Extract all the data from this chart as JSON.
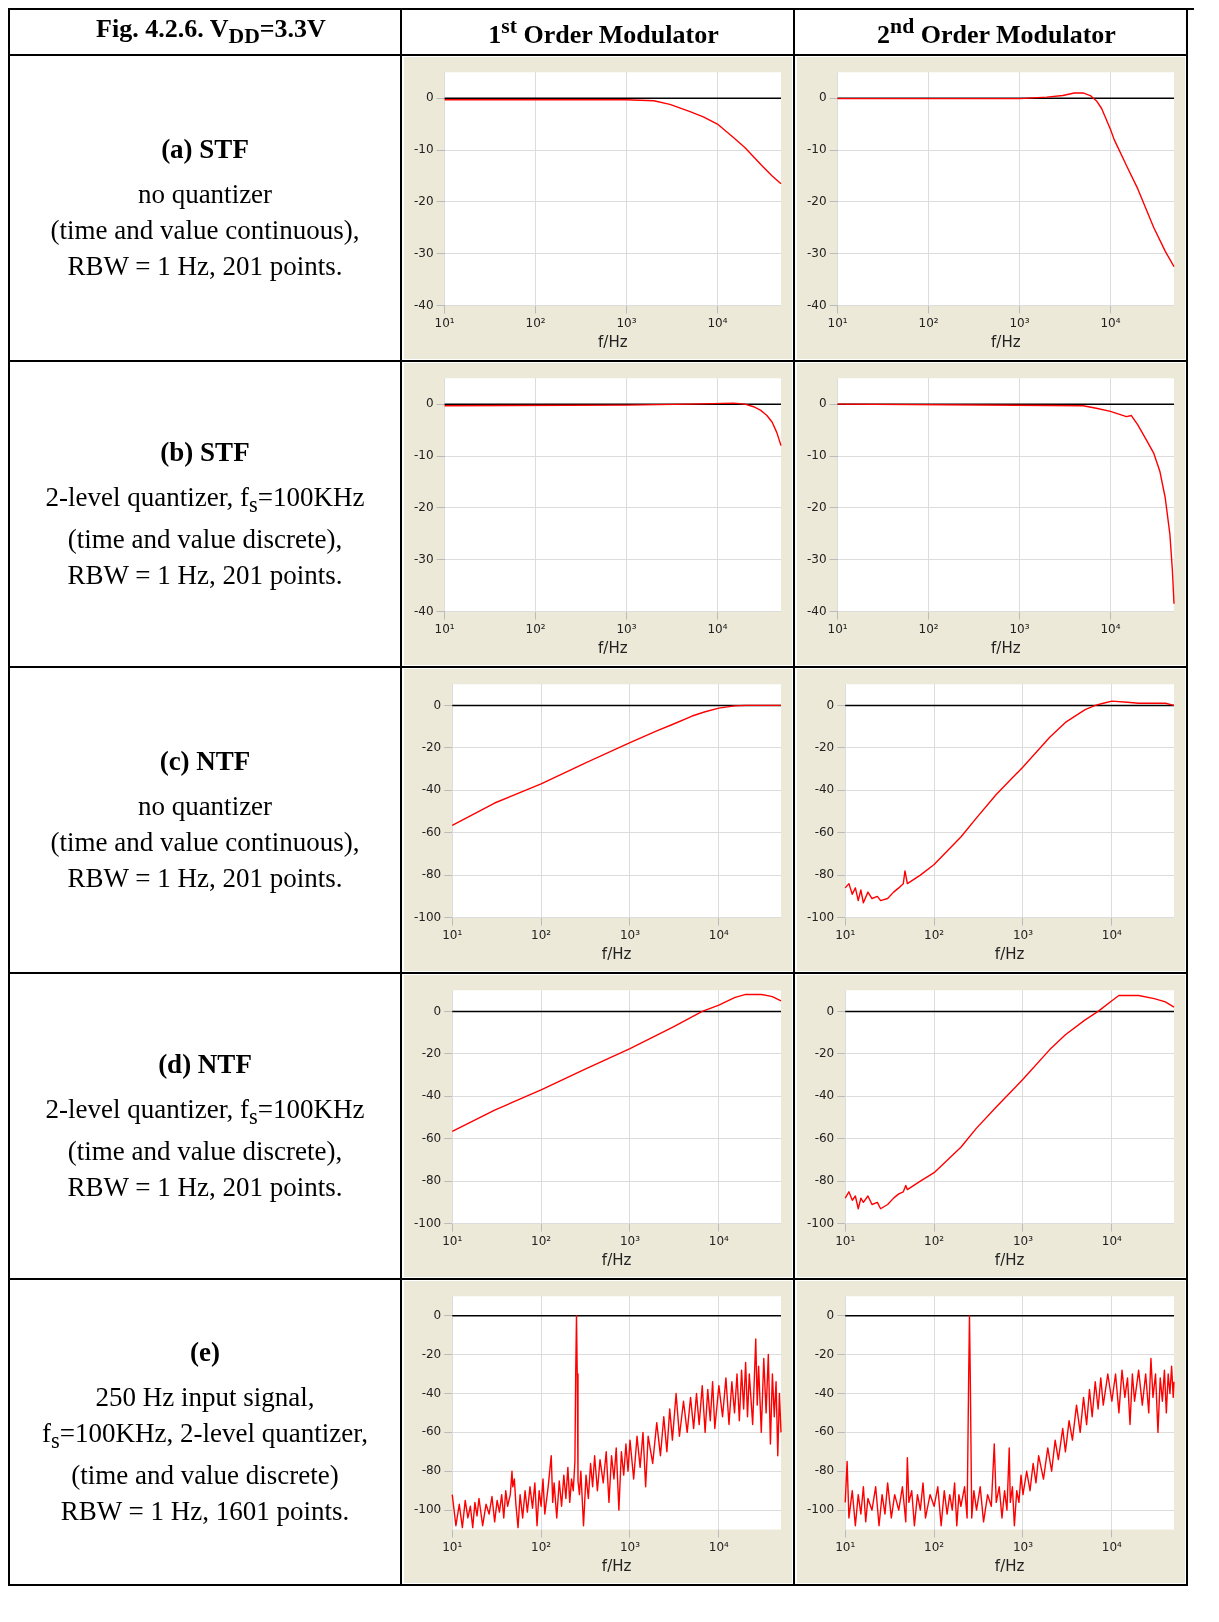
{
  "chart_data": [
    {
      "type": "other",
      "title": "Fig. 4.2.6.   V$_{DD}$=3.3V"
    },
    {
      "type": "other",
      "title": "1$^{st}$ Order Modulator"
    },
    {
      "type": "other",
      "title": "2$^{nd}$ Order Modulator"
    },
    {
      "type": "other",
      "title": "(a) STF",
      "annotations": [
        "no quantizer",
        "(time and value continuous),",
        "RBW = 1 Hz, 201 points."
      ]
    },
    {
      "type": "line",
      "xlabel": "f/Hz",
      "log": "x",
      "grid": true,
      "color": "#ff0000",
      "xlim": [
        10,
        50000
      ],
      "xticks": [
        {
          "value": 10,
          "label": "10¹"
        },
        {
          "value": 100,
          "label": "10²"
        },
        {
          "value": 1000,
          "label": "10³"
        },
        {
          "value": 10000,
          "label": "10⁴"
        }
      ],
      "ylim": [
        -40,
        5
      ],
      "yticks": [
        0,
        -10,
        -20,
        -30,
        -40
      ],
      "ref_lines": [
        {
          "axis": "y",
          "value": 0,
          "color": "#000000"
        }
      ],
      "x": [
        10,
        100,
        1000,
        2000,
        3000,
        5000,
        7000,
        10000,
        15000,
        20000,
        30000,
        40000,
        50000
      ],
      "values": [
        -0.3,
        -0.3,
        -0.3,
        -0.5,
        -1.2,
        -2.6,
        -3.6,
        -5,
        -7.6,
        -9.5,
        -12.8,
        -15,
        -16.5
      ]
    },
    {
      "type": "line",
      "xlabel": "f/Hz",
      "log": "x",
      "grid": true,
      "color": "#ff0000",
      "xlim": [
        10,
        50000
      ],
      "xticks": [
        {
          "value": 10,
          "label": "10¹"
        },
        {
          "value": 100,
          "label": "10²"
        },
        {
          "value": 1000,
          "label": "10³"
        },
        {
          "value": 10000,
          "label": "10⁴"
        }
      ],
      "ylim": [
        -40,
        5
      ],
      "yticks": [
        0,
        -10,
        -20,
        -30,
        -40
      ],
      "ref_lines": [
        {
          "axis": "y",
          "value": 0,
          "color": "#000000"
        }
      ],
      "x": [
        10,
        1000,
        2000,
        3000,
        4000,
        5000,
        6000,
        7000,
        8000,
        10000,
        11000,
        15000,
        20000,
        30000,
        40000,
        50000
      ],
      "values": [
        -0.1,
        -0.1,
        0.2,
        0.5,
        1,
        1,
        0.5,
        -0.5,
        -2,
        -6,
        -8,
        -13,
        -17.5,
        -25,
        -29.5,
        -32.5
      ]
    },
    {
      "type": "other",
      "title": "(b) STF",
      "annotations": [
        "2-level quantizer, f$_{s}$=100KHz",
        "(time and value discrete),",
        "RBW = 1 Hz, 201 points."
      ]
    },
    {
      "type": "line",
      "xlabel": "f/Hz",
      "log": "x",
      "grid": true,
      "color": "#ff0000",
      "xlim": [
        10,
        50000
      ],
      "xticks": [
        {
          "value": 10,
          "label": "10¹"
        },
        {
          "value": 100,
          "label": "10²"
        },
        {
          "value": 1000,
          "label": "10³"
        },
        {
          "value": 10000,
          "label": "10⁴"
        }
      ],
      "ylim": [
        -40,
        5
      ],
      "yticks": [
        0,
        -10,
        -20,
        -30,
        -40
      ],
      "ref_lines": [
        {
          "axis": "y",
          "value": 0,
          "color": "#000000"
        }
      ],
      "x": [
        10,
        1000,
        5000,
        15000,
        20000,
        25000,
        30000,
        35000,
        40000,
        45000,
        50000
      ],
      "values": [
        -0.3,
        -0.2,
        0,
        0.2,
        0,
        -0.5,
        -1.2,
        -2.2,
        -3.5,
        -5.5,
        -8
      ]
    },
    {
      "type": "line",
      "xlabel": "f/Hz",
      "log": "x",
      "grid": true,
      "color": "#ff0000",
      "xlim": [
        10,
        50000
      ],
      "xticks": [
        {
          "value": 10,
          "label": "10¹"
        },
        {
          "value": 100,
          "label": "10²"
        },
        {
          "value": 1000,
          "label": "10³"
        },
        {
          "value": 10000,
          "label": "10⁴"
        }
      ],
      "ylim": [
        -40,
        5
      ],
      "yticks": [
        0,
        -10,
        -20,
        -30,
        -40
      ],
      "ref_lines": [
        {
          "axis": "y",
          "value": 0,
          "color": "#000000"
        }
      ],
      "x": [
        10,
        5000,
        7000,
        10000,
        15000,
        17000,
        20000,
        25000,
        30000,
        35000,
        40000,
        45000,
        48000,
        50000
      ],
      "values": [
        0,
        -0.3,
        -0.8,
        -1.4,
        -2.4,
        -2.2,
        -4,
        -7,
        -9.5,
        -13,
        -18,
        -25,
        -32,
        -38.5
      ]
    },
    {
      "type": "other",
      "title": "(c) NTF",
      "annotations": [
        "no quantizer",
        "(time and value continuous),",
        "RBW = 1 Hz, 201 points."
      ]
    },
    {
      "type": "line",
      "xlabel": "f/Hz",
      "log": "x",
      "grid": true,
      "color": "#ff0000",
      "xlim": [
        10,
        50000
      ],
      "xticks": [
        {
          "value": 10,
          "label": "10¹"
        },
        {
          "value": 100,
          "label": "10²"
        },
        {
          "value": 1000,
          "label": "10³"
        },
        {
          "value": 10000,
          "label": "10⁴"
        }
      ],
      "ylim": [
        -100,
        10
      ],
      "yticks": [
        0,
        -20,
        -40,
        -60,
        -80,
        -100
      ],
      "ref_lines": [
        {
          "axis": "y",
          "value": 0,
          "color": "#000000"
        }
      ],
      "x": [
        10,
        30,
        100,
        300,
        1000,
        2000,
        3000,
        5000,
        7000,
        10000,
        15000,
        20000,
        50000
      ],
      "values": [
        -56.5,
        -46,
        -37,
        -27.5,
        -17.5,
        -12,
        -9,
        -5,
        -3,
        -1.3,
        -0.2,
        0,
        0
      ]
    },
    {
      "type": "line",
      "xlabel": "f/Hz",
      "log": "x",
      "grid": true,
      "color": "#ff0000",
      "xlim": [
        10,
        50000
      ],
      "xticks": [
        {
          "value": 10,
          "label": "10¹"
        },
        {
          "value": 100,
          "label": "10²"
        },
        {
          "value": 1000,
          "label": "10³"
        },
        {
          "value": 10000,
          "label": "10⁴"
        }
      ],
      "ylim": [
        -100,
        10
      ],
      "yticks": [
        0,
        -20,
        -40,
        -60,
        -80,
        -100
      ],
      "ref_lines": [
        {
          "axis": "y",
          "value": 0,
          "color": "#000000"
        }
      ],
      "x": [
        10,
        11,
        12,
        13,
        14,
        15,
        16,
        18,
        20,
        23,
        25,
        30,
        35,
        40,
        45,
        47,
        50,
        70,
        100,
        200,
        300,
        500,
        1000,
        2000,
        3000,
        5000,
        6500,
        8000,
        10000,
        15000,
        20000,
        40000,
        50000
      ],
      "values": [
        -86,
        -84,
        -89,
        -86,
        -92,
        -87,
        -93,
        -88,
        -91,
        -90,
        -92,
        -91,
        -88,
        -86,
        -84,
        -78,
        -84,
        -80,
        -75,
        -62,
        -53,
        -42,
        -29,
        -15,
        -8,
        -2,
        0,
        1,
        2,
        1.5,
        1,
        1,
        0
      ]
    },
    {
      "type": "other",
      "title": "(d) NTF",
      "annotations": [
        "2-level quantizer, f$_{s}$=100KHz",
        "(time and value discrete),",
        "RBW = 1 Hz, 201 points."
      ]
    },
    {
      "type": "line",
      "xlabel": "f/Hz",
      "log": "x",
      "grid": true,
      "color": "#ff0000",
      "xlim": [
        10,
        50000
      ],
      "xticks": [
        {
          "value": 10,
          "label": "10¹"
        },
        {
          "value": 100,
          "label": "10²"
        },
        {
          "value": 1000,
          "label": "10³"
        },
        {
          "value": 10000,
          "label": "10⁴"
        }
      ],
      "ylim": [
        -100,
        10
      ],
      "yticks": [
        0,
        -20,
        -40,
        -60,
        -80,
        -100
      ],
      "ref_lines": [
        {
          "axis": "y",
          "value": 0,
          "color": "#000000"
        }
      ],
      "x": [
        10,
        30,
        100,
        300,
        1000,
        3000,
        6500,
        10000,
        15000,
        20000,
        30000,
        40000,
        50000
      ],
      "values": [
        -56.5,
        -46.5,
        -37,
        -27.5,
        -17.5,
        -7.5,
        0,
        3,
        6.5,
        8,
        8,
        7,
        5
      ]
    },
    {
      "type": "line",
      "xlabel": "f/Hz",
      "log": "x",
      "grid": true,
      "color": "#ff0000",
      "xlim": [
        10,
        50000
      ],
      "xticks": [
        {
          "value": 10,
          "label": "10¹"
        },
        {
          "value": 100,
          "label": "10²"
        },
        {
          "value": 1000,
          "label": "10³"
        },
        {
          "value": 10000,
          "label": "10⁴"
        }
      ],
      "ylim": [
        -100,
        10
      ],
      "yticks": [
        0,
        -20,
        -40,
        -60,
        -80,
        -100
      ],
      "ref_lines": [
        {
          "axis": "y",
          "value": 0,
          "color": "#000000"
        }
      ],
      "x": [
        10,
        11,
        12,
        13,
        14,
        15,
        16,
        18,
        20,
        23,
        25,
        30,
        35,
        40,
        45,
        48,
        50,
        70,
        100,
        200,
        300,
        500,
        1000,
        2000,
        3000,
        5000,
        7000,
        10000,
        12000,
        20000,
        30000,
        40000,
        50000
      ],
      "values": [
        -88,
        -85,
        -89,
        -87,
        -93,
        -88,
        -90,
        -87,
        -91,
        -90,
        -93,
        -91,
        -88,
        -86,
        -85,
        -82,
        -84,
        -80,
        -76,
        -64,
        -55,
        -45,
        -32,
        -18,
        -11,
        -4,
        0,
        5,
        7.5,
        7.5,
        6,
        4.5,
        2
      ]
    },
    {
      "type": "other",
      "title": "(e)",
      "annotations": [
        "250 Hz input signal,",
        "f$_{s}$=100KHz, 2-level quantizer,",
        "(time and value discrete)",
        "RBW = 1 Hz, 1601 points."
      ]
    },
    {
      "type": "line",
      "xlabel": "f/Hz",
      "log": "x",
      "grid": true,
      "color": "#ff0000",
      "xlim": [
        10,
        50000
      ],
      "xticks": [
        {
          "value": 10,
          "label": "10¹"
        },
        {
          "value": 100,
          "label": "10²"
        },
        {
          "value": 1000,
          "label": "10³"
        },
        {
          "value": 10000,
          "label": "10⁴"
        }
      ],
      "ylim": [
        -110,
        10
      ],
      "yticks": [
        0,
        -20,
        -40,
        -60,
        -80,
        -100
      ],
      "ref_lines": [
        {
          "axis": "y",
          "value": 0,
          "color": "#000000"
        }
      ],
      "x": [
        10,
        11,
        12,
        13,
        14,
        15,
        16,
        17,
        18,
        19,
        20,
        22,
        24,
        26,
        28,
        30,
        32,
        34,
        36,
        38,
        40,
        42,
        45,
        47,
        48,
        50,
        52,
        55,
        58,
        62,
        66,
        70,
        75,
        80,
        85,
        90,
        95,
        100,
        105,
        110,
        120,
        130,
        135,
        140,
        150,
        160,
        170,
        180,
        190,
        200,
        210,
        220,
        230,
        240,
        245,
        250,
        255,
        260,
        270,
        280,
        300,
        320,
        340,
        360,
        380,
        400,
        430,
        460,
        500,
        540,
        580,
        620,
        660,
        700,
        750,
        800,
        850,
        900,
        950,
        1000,
        1100,
        1200,
        1300,
        1400,
        1500,
        1600,
        1800,
        2000,
        2200,
        2400,
        2600,
        2800,
        3000,
        3300,
        3600,
        4000,
        4400,
        4800,
        5200,
        5600,
        6000,
        6500,
        7000,
        7500,
        8000,
        8500,
        9000,
        10000,
        11000,
        12000,
        13000,
        14000,
        15000,
        16000,
        17000,
        18000,
        19000,
        20000,
        21000,
        22000,
        24000,
        26000,
        27000,
        28000,
        30000,
        32000,
        34000,
        36000,
        38000,
        40000,
        42000,
        44000,
        46000,
        48000,
        50000
      ],
      "values": [
        -92,
        -108,
        -97,
        -109,
        -95,
        -104,
        -98,
        -109,
        -96,
        -103,
        -94,
        -108,
        -97,
        -102,
        -93,
        -106,
        -95,
        -101,
        -92,
        -104,
        -90,
        -98,
        -92,
        -80,
        -88,
        -84,
        -97,
        -109,
        -92,
        -104,
        -90,
        -101,
        -88,
        -99,
        -86,
        -108,
        -90,
        -98,
        -84,
        -102,
        -88,
        -72,
        -96,
        -86,
        -104,
        -85,
        -98,
        -82,
        -94,
        -78,
        -96,
        -84,
        -90,
        -75,
        -30,
        0,
        -30,
        -85,
        -92,
        -80,
        -108,
        -82,
        -94,
        -76,
        -88,
        -72,
        -90,
        -74,
        -86,
        -70,
        -96,
        -72,
        -84,
        -68,
        -100,
        -70,
        -82,
        -66,
        -80,
        -64,
        -84,
        -62,
        -78,
        -60,
        -88,
        -62,
        -76,
        -55,
        -72,
        -52,
        -70,
        -48,
        -64,
        -40,
        -62,
        -44,
        -60,
        -42,
        -58,
        -40,
        -56,
        -36,
        -60,
        -38,
        -54,
        -34,
        -58,
        -36,
        -52,
        -32,
        -56,
        -34,
        -50,
        -30,
        -54,
        -28,
        -48,
        -24,
        -52,
        -30,
        -56,
        -12,
        -46,
        -26,
        -60,
        -22,
        -50,
        -20,
        -66,
        -30,
        -52,
        -34,
        -72,
        -40,
        -60
      ]
    },
    {
      "type": "line",
      "xlabel": "f/Hz",
      "log": "x",
      "grid": true,
      "color": "#ff0000",
      "xlim": [
        10,
        50000
      ],
      "xticks": [
        {
          "value": 10,
          "label": "10¹"
        },
        {
          "value": 100,
          "label": "10²"
        },
        {
          "value": 1000,
          "label": "10³"
        },
        {
          "value": 10000,
          "label": "10⁴"
        }
      ],
      "ylim": [
        -110,
        10
      ],
      "yticks": [
        0,
        -20,
        -40,
        -60,
        -80,
        -100
      ],
      "ref_lines": [
        {
          "axis": "y",
          "value": 0,
          "color": "#000000"
        }
      ],
      "x": [
        10,
        10.5,
        11,
        12,
        13,
        14,
        15,
        16,
        17,
        18,
        20,
        22,
        24,
        26,
        28,
        30,
        33,
        36,
        40,
        44,
        48,
        50,
        52,
        56,
        60,
        65,
        70,
        75,
        80,
        90,
        100,
        110,
        120,
        130,
        140,
        150,
        160,
        170,
        180,
        190,
        200,
        220,
        235,
        245,
        250,
        255,
        265,
        280,
        300,
        330,
        360,
        400,
        440,
        475,
        500,
        540,
        580,
        620,
        660,
        700,
        720,
        760,
        800,
        850,
        900,
        950,
        1000,
        1100,
        1200,
        1300,
        1400,
        1500,
        1700,
        1900,
        2100,
        2300,
        2500,
        2800,
        3000,
        3300,
        3600,
        4000,
        4400,
        4800,
        5200,
        5600,
        6000,
        6500,
        7000,
        7500,
        8000,
        9000,
        10000,
        11000,
        12000,
        13000,
        14000,
        15000,
        16000,
        17000,
        18000,
        20000,
        22000,
        24000,
        26000,
        27500,
        29000,
        31000,
        33000,
        35000,
        37000,
        39000,
        41000,
        43000,
        45000,
        47000,
        49000,
        50000
      ],
      "values": [
        -96,
        -75,
        -104,
        -90,
        -108,
        -92,
        -102,
        -88,
        -106,
        -94,
        -100,
        -88,
        -108,
        -92,
        -102,
        -86,
        -104,
        -92,
        -100,
        -88,
        -106,
        -73,
        -96,
        -90,
        -108,
        -92,
        -100,
        -86,
        -104,
        -92,
        -98,
        -88,
        -108,
        -90,
        -102,
        -92,
        -100,
        -86,
        -108,
        -92,
        -98,
        -88,
        -104,
        -30,
        0,
        -30,
        -104,
        -90,
        -100,
        -88,
        -106,
        -92,
        -98,
        -66,
        -96,
        -88,
        -104,
        -90,
        -100,
        -68,
        -96,
        -88,
        -108,
        -90,
        -96,
        -82,
        -92,
        -80,
        -90,
        -76,
        -86,
        -72,
        -84,
        -68,
        -80,
        -64,
        -74,
        -58,
        -70,
        -54,
        -64,
        -46,
        -60,
        -42,
        -56,
        -38,
        -52,
        -34,
        -48,
        -32,
        -46,
        -30,
        -44,
        -30,
        -50,
        -28,
        -42,
        -32,
        -56,
        -30,
        -44,
        -28,
        -46,
        -30,
        -50,
        -22,
        -42,
        -30,
        -60,
        -32,
        -44,
        -28,
        -50,
        -30,
        -40,
        -26,
        -42,
        -34
      ]
    }
  ]
}
